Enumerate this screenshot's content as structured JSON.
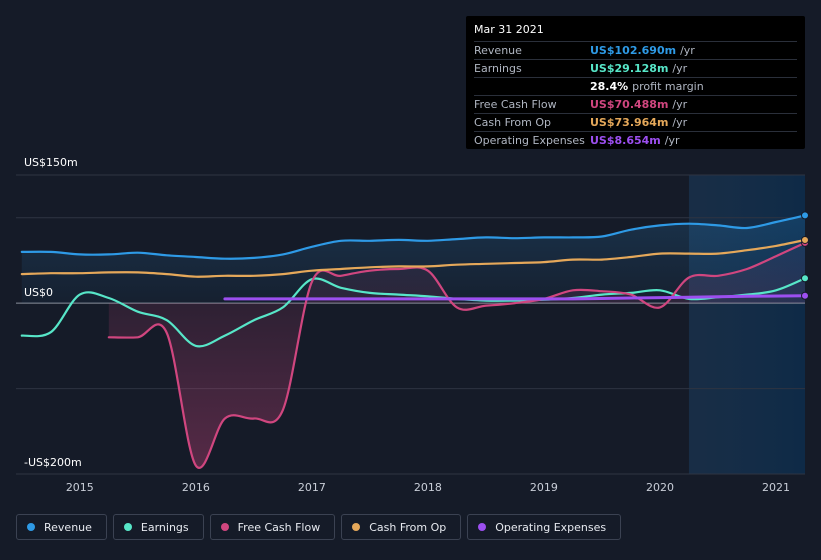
{
  "tooltip": {
    "date": "Mar 31 2021",
    "rows": [
      {
        "label": "Revenue",
        "value": "US$102.690m",
        "unit": "/yr",
        "color": "#2e9ae6"
      },
      {
        "label": "Earnings",
        "value": "US$29.128m",
        "unit": "/yr",
        "color": "#57e6c8"
      },
      {
        "label": "",
        "value": "28.4%",
        "unit": "profit margin",
        "color": "#ffffff"
      },
      {
        "label": "Free Cash Flow",
        "value": "US$70.488m",
        "unit": "/yr",
        "color": "#d0467f"
      },
      {
        "label": "Cash From Op",
        "value": "US$73.964m",
        "unit": "/yr",
        "color": "#e5a85a"
      },
      {
        "label": "Operating Expenses",
        "value": "US$8.654m",
        "unit": "/yr",
        "color": "#9c4ff0"
      }
    ]
  },
  "chart_data": {
    "type": "line",
    "ytop_label": "US$150m",
    "yzero_label": "US$0",
    "ybottom_label": "-US$200m",
    "ylim": [
      -200,
      150
    ],
    "xlim": [
      2014.45,
      2021.25
    ],
    "grid": true,
    "legend_position": "bottom",
    "x_ticks": [
      2015,
      2016,
      2017,
      2018,
      2019,
      2020,
      2021
    ],
    "x_tick_labels": [
      "2015",
      "2016",
      "2017",
      "2018",
      "2019",
      "2020",
      "2021"
    ],
    "forecast_start": 2020.25,
    "series": [
      {
        "name": "Revenue",
        "color": "#2e9ae6",
        "points": [
          [
            2014.5,
            60
          ],
          [
            2014.75,
            60
          ],
          [
            2015.0,
            57
          ],
          [
            2015.25,
            57
          ],
          [
            2015.5,
            59
          ],
          [
            2015.75,
            56
          ],
          [
            2016.0,
            54
          ],
          [
            2016.25,
            52
          ],
          [
            2016.5,
            53
          ],
          [
            2016.75,
            57
          ],
          [
            2017.0,
            66
          ],
          [
            2017.25,
            73
          ],
          [
            2017.5,
            73
          ],
          [
            2017.75,
            74
          ],
          [
            2018.0,
            73
          ],
          [
            2018.25,
            75
          ],
          [
            2018.5,
            77
          ],
          [
            2018.75,
            76
          ],
          [
            2019.0,
            77
          ],
          [
            2019.25,
            77
          ],
          [
            2019.5,
            78
          ],
          [
            2019.75,
            86
          ],
          [
            2020.0,
            91
          ],
          [
            2020.25,
            93
          ],
          [
            2020.5,
            91
          ],
          [
            2020.75,
            88
          ],
          [
            2021.0,
            95
          ],
          [
            2021.25,
            102.69
          ]
        ]
      },
      {
        "name": "Earnings",
        "color": "#57e6c8",
        "points": [
          [
            2014.5,
            -38
          ],
          [
            2014.75,
            -34
          ],
          [
            2015.0,
            10
          ],
          [
            2015.25,
            6
          ],
          [
            2015.5,
            -10
          ],
          [
            2015.75,
            -20
          ],
          [
            2016.0,
            -50
          ],
          [
            2016.25,
            -38
          ],
          [
            2016.5,
            -20
          ],
          [
            2016.75,
            -5
          ],
          [
            2017.0,
            28
          ],
          [
            2017.25,
            18
          ],
          [
            2017.5,
            12
          ],
          [
            2017.75,
            10
          ],
          [
            2018.0,
            8
          ],
          [
            2018.25,
            5
          ],
          [
            2018.5,
            3
          ],
          [
            2018.75,
            3
          ],
          [
            2019.0,
            4
          ],
          [
            2019.25,
            6
          ],
          [
            2019.5,
            10
          ],
          [
            2019.75,
            12
          ],
          [
            2020.0,
            15
          ],
          [
            2020.25,
            5
          ],
          [
            2020.5,
            7
          ],
          [
            2020.75,
            10
          ],
          [
            2021.0,
            15
          ],
          [
            2021.25,
            29.128
          ]
        ]
      },
      {
        "name": "Free Cash Flow",
        "color": "#d0467f",
        "points": [
          [
            2015.25,
            -40
          ],
          [
            2015.5,
            -40
          ],
          [
            2015.75,
            -35
          ],
          [
            2016.0,
            -190
          ],
          [
            2016.25,
            -135
          ],
          [
            2016.5,
            -135
          ],
          [
            2016.75,
            -125
          ],
          [
            2017.0,
            25
          ],
          [
            2017.25,
            32
          ],
          [
            2017.5,
            38
          ],
          [
            2017.75,
            40
          ],
          [
            2018.0,
            38
          ],
          [
            2018.25,
            -5
          ],
          [
            2018.5,
            -3
          ],
          [
            2018.75,
            0
          ],
          [
            2019.0,
            5
          ],
          [
            2019.25,
            15
          ],
          [
            2019.5,
            14
          ],
          [
            2019.75,
            10
          ],
          [
            2020.0,
            -5
          ],
          [
            2020.25,
            30
          ],
          [
            2020.5,
            32
          ],
          [
            2020.75,
            40
          ],
          [
            2021.0,
            55
          ],
          [
            2021.25,
            70.488
          ]
        ]
      },
      {
        "name": "Cash From Op",
        "color": "#e5a85a",
        "points": [
          [
            2014.5,
            34
          ],
          [
            2014.75,
            35
          ],
          [
            2015.0,
            35
          ],
          [
            2015.25,
            36
          ],
          [
            2015.5,
            36
          ],
          [
            2015.75,
            34
          ],
          [
            2016.0,
            31
          ],
          [
            2016.25,
            32
          ],
          [
            2016.5,
            32
          ],
          [
            2016.75,
            34
          ],
          [
            2017.0,
            38
          ],
          [
            2017.25,
            40
          ],
          [
            2017.5,
            42
          ],
          [
            2017.75,
            43
          ],
          [
            2018.0,
            43
          ],
          [
            2018.25,
            45
          ],
          [
            2018.5,
            46
          ],
          [
            2018.75,
            47
          ],
          [
            2019.0,
            48
          ],
          [
            2019.25,
            51
          ],
          [
            2019.5,
            51
          ],
          [
            2019.75,
            54
          ],
          [
            2020.0,
            58
          ],
          [
            2020.25,
            58
          ],
          [
            2020.5,
            58
          ],
          [
            2020.75,
            62
          ],
          [
            2021.0,
            67
          ],
          [
            2021.25,
            73.964
          ]
        ]
      },
      {
        "name": "Operating Expenses",
        "color": "#9c4ff0",
        "points": [
          [
            2016.25,
            5
          ],
          [
            2016.75,
            5
          ],
          [
            2017.25,
            5
          ],
          [
            2017.75,
            5
          ],
          [
            2018.25,
            5
          ],
          [
            2018.75,
            5
          ],
          [
            2019.25,
            5
          ],
          [
            2019.75,
            6
          ],
          [
            2020.25,
            7
          ],
          [
            2020.75,
            8
          ],
          [
            2021.25,
            8.654
          ]
        ]
      }
    ]
  },
  "legend": [
    "Revenue",
    "Earnings",
    "Free Cash Flow",
    "Cash From Op",
    "Operating Expenses"
  ]
}
